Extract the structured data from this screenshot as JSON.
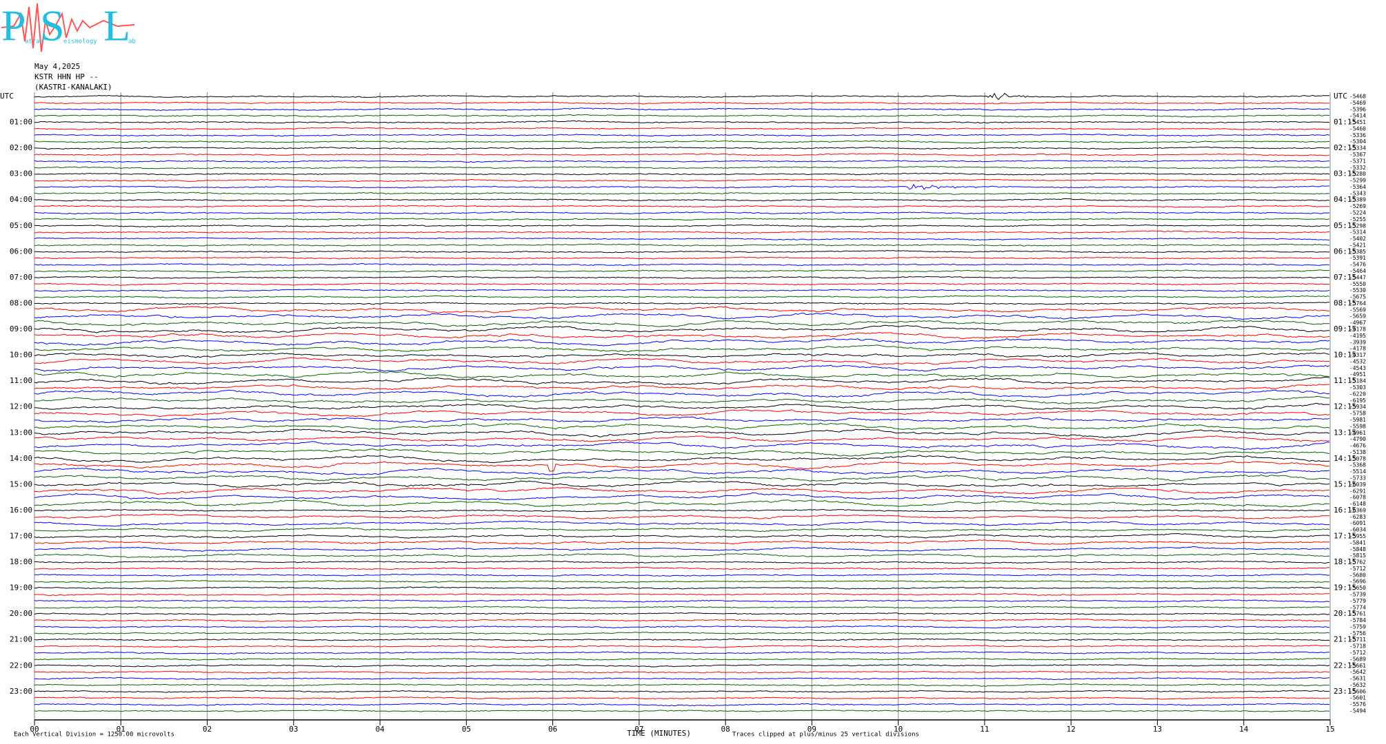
{
  "logo": {
    "letters": [
      "P",
      "S",
      "L"
    ],
    "small": [
      "atras",
      "eismology",
      "ab"
    ]
  },
  "header": {
    "date": "May 4,2025",
    "station": "KSTR HHN HP --",
    "location": "(KASTRI-KANALAKI)"
  },
  "chart_data": {
    "type": "helicorder",
    "left_labels": [
      "UTC",
      "01:00",
      "02:00",
      "03:00",
      "04:00",
      "05:00",
      "06:00",
      "07:00",
      "08:00",
      "09:00",
      "10:00",
      "11:00",
      "12:00",
      "13:00",
      "14:00",
      "15:00",
      "16:00",
      "17:00",
      "18:00",
      "19:00",
      "20:00",
      "21:00",
      "22:00",
      "23:00"
    ],
    "right_labels": [
      "UTC",
      "01:15",
      "02:15",
      "03:15",
      "04:15",
      "05:15",
      "06:15",
      "07:15",
      "08:15",
      "09:15",
      "10:15",
      "11:15",
      "12:15",
      "13:15",
      "14:15",
      "15:15",
      "16:15",
      "17:15",
      "18:15",
      "19:15",
      "20:15",
      "21:15",
      "22:15",
      "23:15"
    ],
    "trace_labels": [
      -5468,
      -5469,
      -5396,
      -5414,
      -5451,
      -5460,
      -5336,
      -5304,
      -5334,
      -5367,
      -5371,
      -5332,
      -5280,
      -5299,
      -5364,
      -5343,
      -5389,
      -5269,
      -5224,
      -5255,
      -5298,
      -5314,
      -5402,
      -5421,
      -5385,
      -5391,
      -5476,
      -5464,
      -5447,
      -5550,
      -5530,
      -5675,
      -5764,
      -5569,
      -5659,
      -4967,
      -4178,
      -4195,
      -3939,
      -4178,
      -4317,
      -4532,
      -4543,
      -4951,
      -5184,
      -5303,
      -6220,
      -6195,
      -5934,
      -5758,
      -5981,
      -5598,
      -4961,
      -4790,
      -4676,
      -5138,
      -5078,
      -5368,
      -5514,
      -5733,
      -6039,
      -6291,
      -6078,
      -6148,
      -6369,
      -6283,
      -6091,
      -6034,
      -5955,
      -5841,
      -5848,
      -5815,
      -5762,
      -5712,
      -5680,
      -5696,
      -5650,
      -5739,
      -5779,
      -5774,
      -5761,
      -5784,
      -5759,
      -5756,
      -5711,
      -5718,
      -5712,
      -5689,
      -5661,
      -5642,
      -5631,
      -5632,
      -5606,
      -5601,
      -5576,
      -5494
    ],
    "colors": [
      "#000000",
      "#ff0000",
      "#0000ff",
      "#006400"
    ],
    "xlim": [
      0,
      15
    ],
    "xticks": [
      {
        "value": 0,
        "label": "00"
      },
      {
        "value": 1,
        "label": "01"
      },
      {
        "value": 2,
        "label": "02"
      },
      {
        "value": 3,
        "label": "03"
      },
      {
        "value": 4,
        "label": "04"
      },
      {
        "value": 5,
        "label": "05"
      },
      {
        "value": 6,
        "label": "06"
      },
      {
        "value": 7,
        "label": "07"
      },
      {
        "value": 8,
        "label": "08"
      },
      {
        "value": 9,
        "label": "09"
      },
      10,
      11,
      12,
      13,
      14,
      15
    ],
    "xlabel": "TIME (MINUTES)",
    "scale_note": "Each Vertical Division = 1250.00 microvolts",
    "clip_note": "Traces clipped at plus/minus 25 vertical divisions",
    "grid": true
  }
}
